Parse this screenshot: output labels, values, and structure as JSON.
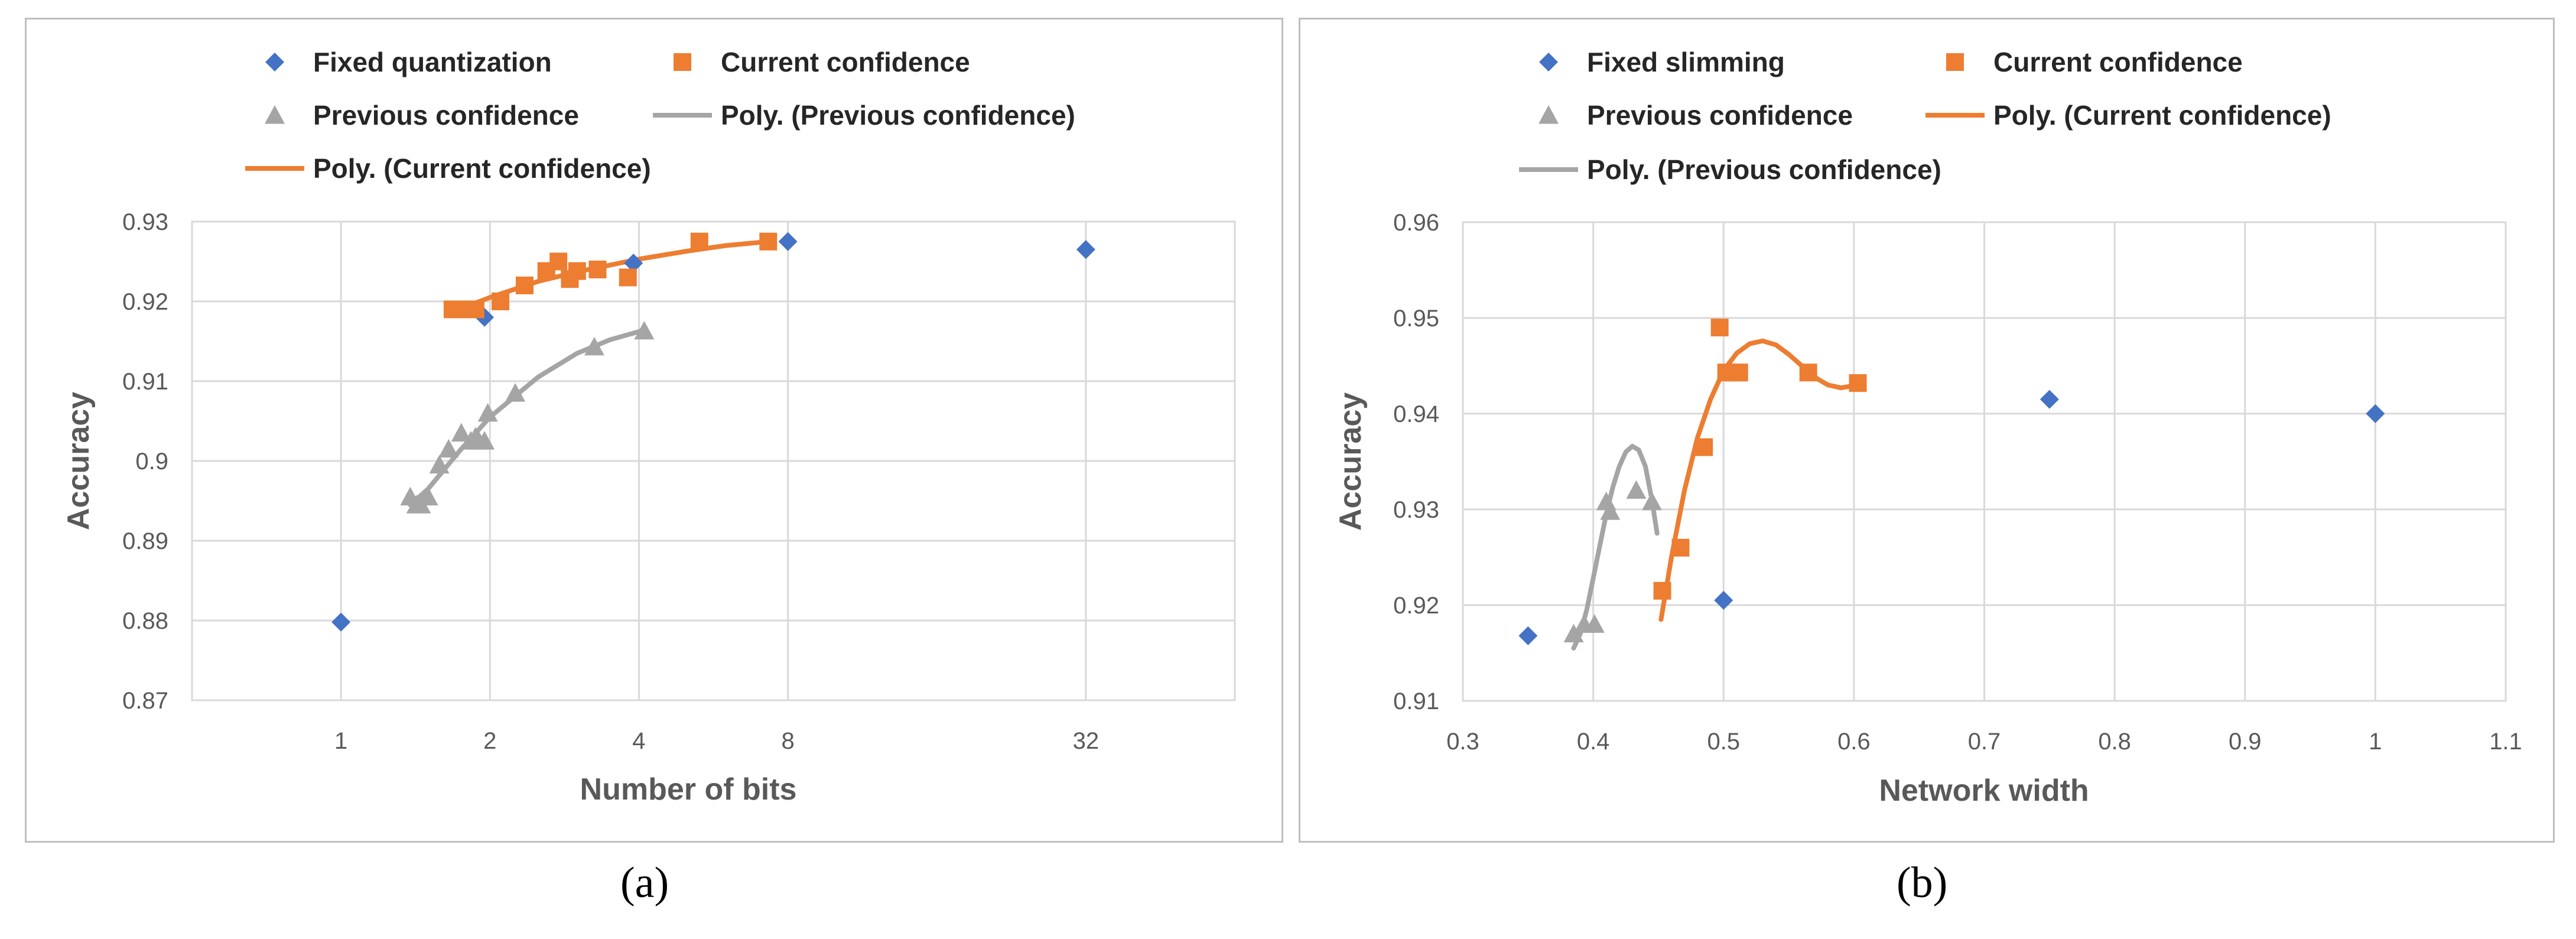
{
  "captions": {
    "a": "(a)",
    "b": "(b)"
  },
  "colors": {
    "fixed": "#4472C4",
    "current": "#ED7D31",
    "previous": "#A5A5A5",
    "grid": "#d9d9d9",
    "axis": "#bfbfbf"
  },
  "chart_data": [
    {
      "id": "a",
      "type": "scatter",
      "title": "",
      "xlabel": "Number of bits",
      "ylabel": "Accuracy",
      "x_scale": "log2",
      "xlim": [
        0.5,
        64
      ],
      "ylim": [
        0.87,
        0.93
      ],
      "x_ticks": [
        1,
        2,
        4,
        8,
        32
      ],
      "x_tick_labels": [
        "1",
        "2",
        "4",
        "8",
        "32"
      ],
      "y_ticks": [
        0.87,
        0.88,
        0.89,
        0.9,
        0.91,
        0.92,
        0.93
      ],
      "y_tick_labels": [
        "0.87",
        "0.88",
        "0.89",
        "0.9",
        "0.91",
        "0.92",
        "0.93"
      ],
      "grid": true,
      "legend": [
        {
          "label": "Fixed quantization",
          "marker": "diamond",
          "color": "#4472C4"
        },
        {
          "label": "Current confidence",
          "marker": "square",
          "color": "#ED7D31"
        },
        {
          "label": "Previous confidence",
          "marker": "triangle",
          "color": "#A5A5A5"
        },
        {
          "label": "Poly. (Previous confidence)",
          "marker": "line",
          "color": "#A5A5A5"
        },
        {
          "label": "Poly. (Current confidence)",
          "marker": "line",
          "color": "#ED7D31"
        }
      ],
      "series": [
        {
          "name": "Fixed quantization",
          "marker": "diamond",
          "color": "#4472C4",
          "points": [
            [
              1,
              0.8798
            ],
            [
              1.95,
              0.918
            ],
            [
              3.9,
              0.9248
            ],
            [
              8,
              0.9275
            ],
            [
              32,
              0.9265
            ]
          ]
        },
        {
          "name": "Current confidence",
          "marker": "square",
          "color": "#ED7D31",
          "points": [
            [
              1.68,
              0.919
            ],
            [
              1.75,
              0.919
            ],
            [
              1.87,
              0.919
            ],
            [
              2.1,
              0.92
            ],
            [
              2.35,
              0.922
            ],
            [
              2.6,
              0.9238
            ],
            [
              2.75,
              0.925
            ],
            [
              2.9,
              0.9228
            ],
            [
              3.0,
              0.9238
            ],
            [
              3.3,
              0.924
            ],
            [
              3.8,
              0.923
            ],
            [
              5.3,
              0.9275
            ],
            [
              7.3,
              0.9275
            ]
          ]
        },
        {
          "name": "Previous confidence",
          "marker": "triangle",
          "color": "#A5A5A5",
          "points": [
            [
              1.38,
              0.8955
            ],
            [
              1.42,
              0.8945
            ],
            [
              1.45,
              0.8945
            ],
            [
              1.5,
              0.8955
            ],
            [
              1.58,
              0.8995
            ],
            [
              1.65,
              0.9015
            ],
            [
              1.75,
              0.9035
            ],
            [
              1.83,
              0.9025
            ],
            [
              1.87,
              0.903
            ],
            [
              1.9,
              0.9025
            ],
            [
              1.95,
              0.9025
            ],
            [
              1.98,
              0.906
            ],
            [
              2.25,
              0.9085
            ],
            [
              3.25,
              0.9143
            ],
            [
              4.1,
              0.9163
            ]
          ]
        },
        {
          "name": "Poly. (Previous confidence)",
          "type": "line",
          "color": "#A5A5A5",
          "points": [
            [
              1.38,
              0.8945
            ],
            [
              1.5,
              0.8965
            ],
            [
              1.75,
              0.9015
            ],
            [
              2.0,
              0.9055
            ],
            [
              2.5,
              0.9105
            ],
            [
              3.0,
              0.9135
            ],
            [
              3.5,
              0.9152
            ],
            [
              4.1,
              0.9164
            ]
          ]
        },
        {
          "name": "Poly. (Current confidence)",
          "type": "line",
          "color": "#ED7D31",
          "points": [
            [
              1.68,
              0.9187
            ],
            [
              2.0,
              0.9205
            ],
            [
              2.5,
              0.9225
            ],
            [
              3.0,
              0.9237
            ],
            [
              4.0,
              0.9253
            ],
            [
              5.0,
              0.9263
            ],
            [
              6.0,
              0.927
            ],
            [
              7.3,
              0.9275
            ]
          ]
        }
      ]
    },
    {
      "id": "b",
      "type": "scatter",
      "title": "",
      "xlabel": "Network width",
      "ylabel": "Accuracy",
      "x_scale": "linear",
      "xlim": [
        0.3,
        1.1
      ],
      "ylim": [
        0.91,
        0.96
      ],
      "x_ticks": [
        0.3,
        0.4,
        0.5,
        0.6,
        0.7,
        0.8,
        0.9,
        1.0,
        1.1
      ],
      "x_tick_labels": [
        "0.3",
        "0.4",
        "0.5",
        "0.6",
        "0.7",
        "0.8",
        "0.9",
        "1",
        "1.1"
      ],
      "y_ticks": [
        0.91,
        0.92,
        0.93,
        0.94,
        0.95,
        0.96
      ],
      "y_tick_labels": [
        "0.91",
        "0.92",
        "0.93",
        "0.94",
        "0.95",
        "0.96"
      ],
      "grid": true,
      "legend": [
        {
          "label": "Fixed slimming",
          "marker": "diamond",
          "color": "#4472C4"
        },
        {
          "label": "Current confidence",
          "marker": "square",
          "color": "#ED7D31"
        },
        {
          "label": "Previous confidence",
          "marker": "triangle",
          "color": "#A5A5A5"
        },
        {
          "label": "Poly. (Current confidence)",
          "marker": "line",
          "color": "#ED7D31"
        },
        {
          "label": "Poly. (Previous confidence)",
          "marker": "line",
          "color": "#A5A5A5"
        }
      ],
      "series": [
        {
          "name": "Fixed slimming",
          "marker": "diamond",
          "color": "#4472C4",
          "points": [
            [
              0.35,
              0.9168
            ],
            [
              0.5,
              0.9205
            ],
            [
              0.75,
              0.9415
            ],
            [
              1.0,
              0.94
            ]
          ]
        },
        {
          "name": "Current confidence",
          "marker": "square",
          "color": "#ED7D31",
          "points": [
            [
              0.453,
              0.9215
            ],
            [
              0.467,
              0.926
            ],
            [
              0.485,
              0.9365
            ],
            [
              0.497,
              0.949
            ],
            [
              0.502,
              0.9443
            ],
            [
              0.507,
              0.9443
            ],
            [
              0.512,
              0.9443
            ],
            [
              0.565,
              0.9443
            ],
            [
              0.603,
              0.9432
            ]
          ]
        },
        {
          "name": "Previous confidence",
          "marker": "triangle",
          "color": "#A5A5A5",
          "points": [
            [
              0.385,
              0.917
            ],
            [
              0.393,
              0.918
            ],
            [
              0.401,
              0.918
            ],
            [
              0.41,
              0.9308
            ],
            [
              0.413,
              0.9298
            ],
            [
              0.433,
              0.932
            ],
            [
              0.445,
              0.9308
            ]
          ]
        },
        {
          "name": "Poly. (Current confidence)",
          "type": "line",
          "color": "#ED7D31",
          "points": [
            [
              0.452,
              0.9185
            ],
            [
              0.46,
              0.925
            ],
            [
              0.47,
              0.932
            ],
            [
              0.48,
              0.9375
            ],
            [
              0.49,
              0.9415
            ],
            [
              0.5,
              0.9445
            ],
            [
              0.51,
              0.9463
            ],
            [
              0.52,
              0.9473
            ],
            [
              0.53,
              0.9476
            ],
            [
              0.54,
              0.9472
            ],
            [
              0.55,
              0.9462
            ],
            [
              0.56,
              0.945
            ],
            [
              0.57,
              0.9438
            ],
            [
              0.58,
              0.943
            ],
            [
              0.59,
              0.9427
            ],
            [
              0.603,
              0.943
            ]
          ]
        },
        {
          "name": "Poly. (Previous confidence)",
          "type": "line",
          "color": "#A5A5A5",
          "points": [
            [
              0.385,
              0.9155
            ],
            [
              0.39,
              0.917
            ],
            [
              0.395,
              0.9195
            ],
            [
              0.4,
              0.9228
            ],
            [
              0.405,
              0.9262
            ],
            [
              0.41,
              0.9295
            ],
            [
              0.415,
              0.9323
            ],
            [
              0.42,
              0.9345
            ],
            [
              0.425,
              0.936
            ],
            [
              0.43,
              0.9366
            ],
            [
              0.435,
              0.9362
            ],
            [
              0.44,
              0.9345
            ],
            [
              0.445,
              0.931
            ],
            [
              0.449,
              0.9275
            ]
          ]
        }
      ]
    }
  ]
}
